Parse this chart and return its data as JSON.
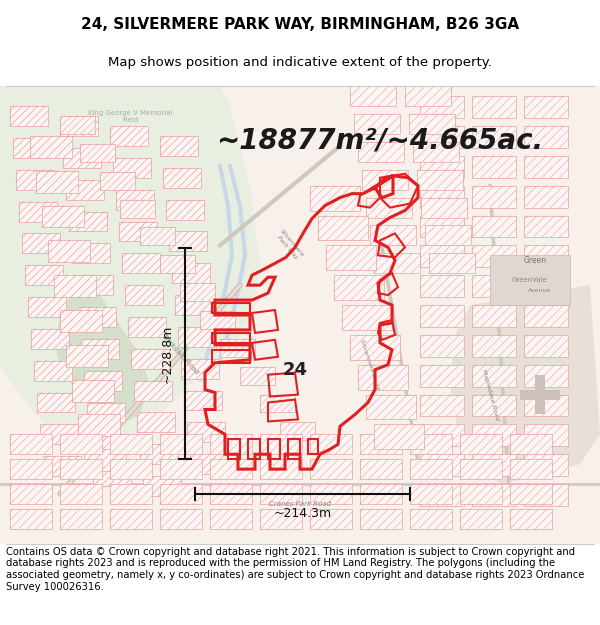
{
  "title_line1": "24, SILVERMERE PARK WAY, BIRMINGHAM, B26 3GA",
  "title_line2": "Map shows position and indicative extent of the property.",
  "area_text": "~18877m²/~4.665ac.",
  "label_24": "24",
  "dim_vertical": "~228.8m",
  "dim_horizontal": "~214.3m",
  "footer_text": "Contains OS data © Crown copyright and database right 2021. This information is subject to Crown copyright and database rights 2023 and is reproduced with the permission of HM Land Registry. The polygons (including the associated geometry, namely x, y co-ordinates) are subject to Crown copyright and database rights 2023 Ordnance Survey 100026316.",
  "bg_color": "#ffffff",
  "map_bg": "#f7f0eb",
  "park_color": "#e8efe0",
  "park_dark": "#d4e0cc",
  "red_color": "#e02020",
  "light_red": "#e8a0a0",
  "light_red2": "#f0c0c0",
  "road_color": "#e0d0c0",
  "gray_bg": "#d8ccc0",
  "title_fontsize": 11,
  "subtitle_fontsize": 9.5,
  "area_fontsize": 20,
  "dim_fontsize": 9,
  "footer_fontsize": 7.2
}
